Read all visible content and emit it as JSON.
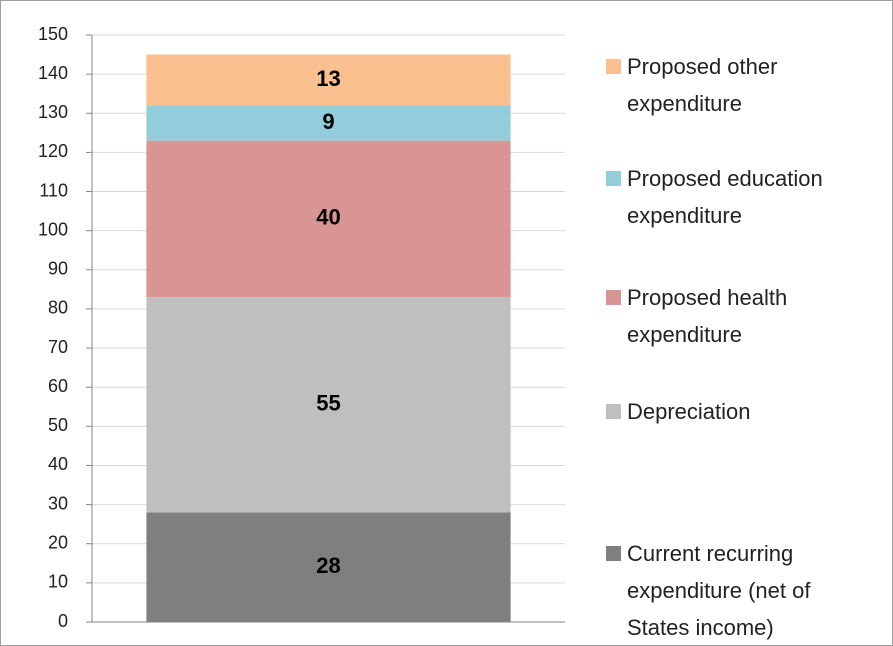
{
  "chart_data": {
    "type": "stacked-bar",
    "categories": [
      null
    ],
    "series": [
      {
        "name": "Current recurring expenditure (net of States income)",
        "color": "#7f7f7f",
        "values": [
          28
        ]
      },
      {
        "name": "Depreciation",
        "color": "#bfbfbf",
        "values": [
          55
        ]
      },
      {
        "name": "Proposed health expenditure",
        "color": "#d99594",
        "values": [
          40
        ]
      },
      {
        "name": "Proposed education expenditure",
        "color": "#92cddc",
        "values": [
          9
        ]
      },
      {
        "name": "Proposed other expenditure",
        "color": "#fac090",
        "values": [
          13
        ]
      }
    ],
    "ylim": [
      0,
      150
    ],
    "yticks": [
      0,
      10,
      20,
      30,
      40,
      50,
      60,
      70,
      80,
      90,
      100,
      110,
      120,
      130,
      140,
      150
    ],
    "grid": true,
    "legend": "right"
  }
}
